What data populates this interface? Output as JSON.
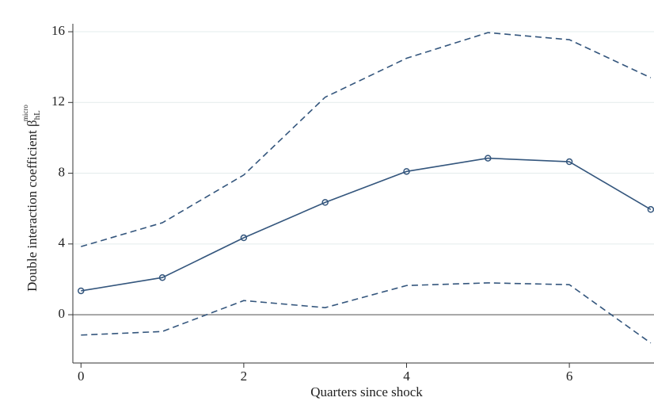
{
  "chart_data": {
    "type": "line",
    "x_label": "Quarters since shock",
    "y_label": "Double interaction coefficient β",
    "y_label_sub": "hL",
    "y_label_sup": "micro",
    "x": [
      0,
      1,
      2,
      3,
      4,
      5,
      6,
      7
    ],
    "series": [
      {
        "color": "#34567d",
        "dashed": false,
        "markers": true,
        "values": [
          1.35,
          2.1,
          4.35,
          6.35,
          8.1,
          8.85,
          8.65,
          5.95
        ]
      },
      {
        "color": "#34567d",
        "dashed": true,
        "markers": false,
        "values": [
          3.85,
          5.2,
          7.9,
          12.3,
          14.5,
          15.95,
          15.55,
          13.4
        ]
      },
      {
        "color": "#34567d",
        "dashed": true,
        "markers": false,
        "values": [
          -1.15,
          -0.95,
          0.8,
          0.4,
          1.65,
          1.8,
          1.7,
          -1.6
        ]
      }
    ],
    "xlim": [
      -0.1,
      7.04
    ],
    "ylim": [
      -2.73,
      16.45
    ],
    "xticks": [
      0,
      2,
      4,
      6
    ],
    "yticks": [
      0,
      4,
      8,
      12,
      16
    ],
    "grid": true,
    "hline": 0
  }
}
